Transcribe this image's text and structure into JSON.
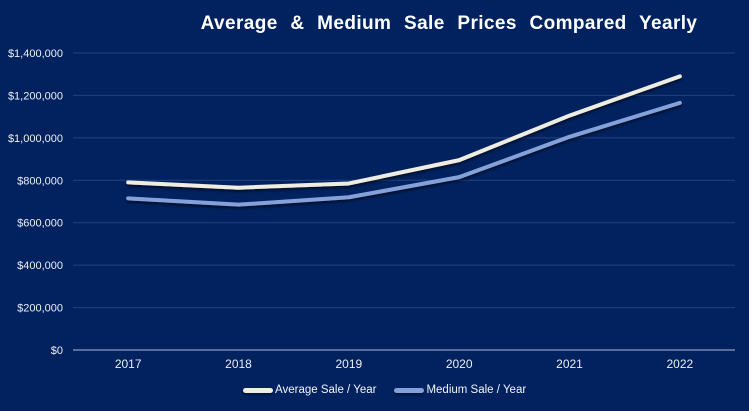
{
  "page": {
    "background": "#01225F"
  },
  "chart_data": {
    "type": "line",
    "title": "Average & Medium Sale Prices Compared Yearly",
    "categories": [
      "2017",
      "2018",
      "2019",
      "2020",
      "2021",
      "2022"
    ],
    "series": [
      {
        "name": "Average Sale / Year",
        "color": "#EFECE2",
        "values": [
          790000,
          765000,
          785000,
          895000,
          1105000,
          1290000
        ]
      },
      {
        "name": "Medium Sale / Year",
        "color": "#84A1DA",
        "values": [
          715000,
          685000,
          720000,
          815000,
          1005000,
          1165000
        ]
      }
    ],
    "ylim": [
      0,
      1400000
    ],
    "ytick_step": 200000,
    "ytick_labels": [
      "$0",
      "$200,000",
      "$400,000",
      "$600,000",
      "$800,000",
      "$1,000,000",
      "$1,200,000",
      "$1,400,000"
    ],
    "xlabel": "",
    "ylabel": "",
    "grid": true,
    "legend_position": "bottom"
  },
  "colors": {
    "background": "#01225F",
    "title": "#FFFFFF",
    "axis_labels": "#ECEFF6",
    "gridline": "#24417C",
    "axis_line": "#8E9DBE"
  }
}
